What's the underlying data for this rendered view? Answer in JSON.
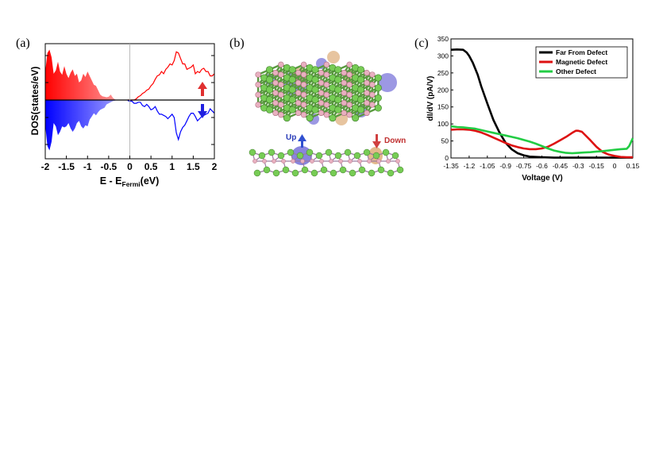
{
  "panels": {
    "a": "(a)",
    "b": "(b)",
    "c": "(c)"
  },
  "structure_labels": {
    "up": "Up",
    "down": "Down"
  },
  "colors": {
    "spin_up": "#ff0000",
    "spin_down": "#0000ff",
    "far": "#000000",
    "magnetic": "#dd1111",
    "other": "#22cc44",
    "carbon_green": "#77cc55",
    "atom_pink": "#e8b0c0",
    "density_orange": "#d08a40",
    "density_blue": "#4a44cc"
  },
  "chart_data": [
    {
      "type": "area",
      "panel": "a",
      "xlabel_main": "E - E",
      "xlabel_sub": "Fermi",
      "xlabel_unit": "(eV)",
      "ylabel": "DOS(states/eV)",
      "xlim": [
        -2,
        2
      ],
      "x_ticks": [
        "-2",
        "-1.5",
        "-1",
        "-0.5",
        "0",
        "0.5",
        "1",
        "1.5",
        "2"
      ],
      "series": [
        {
          "spin": "up",
          "x": [
            -2.0,
            -1.95,
            -1.9,
            -1.85,
            -1.8,
            -1.75,
            -1.7,
            -1.65,
            -1.6,
            -1.55,
            -1.5,
            -1.45,
            -1.4,
            -1.35,
            -1.3,
            -1.25,
            -1.2,
            -1.15,
            -1.1,
            -1.05,
            -1.0,
            -0.95,
            -0.9,
            -0.85,
            -0.8,
            -0.75,
            -0.7,
            -0.65,
            -0.6,
            -0.55,
            -0.5,
            -0.45,
            -0.4,
            -0.35,
            -0.3,
            -0.25,
            -0.2,
            -0.15,
            -0.1,
            -0.05,
            0.0,
            0.05,
            0.1,
            0.15,
            0.2,
            0.25,
            0.3,
            0.35,
            0.4,
            0.45,
            0.5,
            0.55,
            0.6,
            0.65,
            0.7,
            0.75,
            0.8,
            0.85,
            0.9,
            0.95,
            1.0,
            1.05,
            1.1,
            1.15,
            1.2,
            1.25,
            1.3,
            1.35,
            1.4,
            1.45,
            1.5,
            1.55,
            1.6,
            1.65,
            1.7,
            1.75,
            1.8,
            1.85,
            1.9,
            1.95,
            2.0
          ],
          "y": [
            2.6,
            4.3,
            4.6,
            3.9,
            2.4,
            2.7,
            3.5,
            2.6,
            2.3,
            3.1,
            2.4,
            2.0,
            2.5,
            2.8,
            2.2,
            2.4,
            1.6,
            1.8,
            2.4,
            2.1,
            2.6,
            2.2,
            1.8,
            1.4,
            1.3,
            0.9,
            0.5,
            0.35,
            0.3,
            0.25,
            0.3,
            0.5,
            0.2,
            0.05,
            0.0,
            0.0,
            0.0,
            0.0,
            0.0,
            0.0,
            0.0,
            0.0,
            0.0,
            0.1,
            0.3,
            0.4,
            0.6,
            0.7,
            0.9,
            1.0,
            1.3,
            1.5,
            1.9,
            2.2,
            2.3,
            2.6,
            2.4,
            2.8,
            3.0,
            3.3,
            3.2,
            3.6,
            4.4,
            4.3,
            3.8,
            3.3,
            3.3,
            2.8,
            2.9,
            3.0,
            3.2,
            2.4,
            2.6,
            2.5,
            2.8,
            2.9,
            2.6,
            2.6,
            2.2,
            2.2,
            2.4
          ]
        },
        {
          "spin": "down",
          "x": [
            -2.0,
            -1.95,
            -1.9,
            -1.85,
            -1.8,
            -1.75,
            -1.7,
            -1.65,
            -1.6,
            -1.55,
            -1.5,
            -1.45,
            -1.4,
            -1.35,
            -1.3,
            -1.25,
            -1.2,
            -1.15,
            -1.1,
            -1.05,
            -1.0,
            -0.95,
            -0.9,
            -0.85,
            -0.8,
            -0.75,
            -0.7,
            -0.65,
            -0.6,
            -0.55,
            -0.5,
            -0.45,
            -0.4,
            -0.35,
            -0.3,
            -0.25,
            -0.2,
            -0.15,
            -0.1,
            -0.05,
            0.0,
            0.05,
            0.1,
            0.15,
            0.2,
            0.25,
            0.3,
            0.35,
            0.4,
            0.45,
            0.5,
            0.55,
            0.6,
            0.65,
            0.7,
            0.75,
            0.8,
            0.85,
            0.9,
            0.95,
            1.0,
            1.05,
            1.1,
            1.15,
            1.2,
            1.25,
            1.3,
            1.35,
            1.4,
            1.45,
            1.5,
            1.55,
            1.6,
            1.65,
            1.7,
            1.75,
            1.8,
            1.85,
            1.9,
            1.95,
            2.0
          ],
          "y": [
            -2.3,
            -4.2,
            -4.6,
            -3.8,
            -2.1,
            -2.4,
            -3.2,
            -2.9,
            -2.4,
            -2.5,
            -2.4,
            -2.1,
            -2.6,
            -2.9,
            -2.6,
            -2.1,
            -1.9,
            -2.4,
            -2.6,
            -2.3,
            -2.4,
            -1.8,
            -1.5,
            -1.2,
            -1.4,
            -1.1,
            -0.9,
            -0.8,
            -0.7,
            -0.4,
            -0.3,
            -0.2,
            -0.1,
            -0.05,
            0.0,
            0.0,
            0.0,
            0.0,
            0.0,
            -0.05,
            -0.1,
            -0.1,
            -0.3,
            -0.3,
            -0.2,
            -0.2,
            -0.5,
            -0.6,
            -0.4,
            -0.6,
            -0.9,
            -0.8,
            -0.6,
            -1.0,
            -1.3,
            -1.3,
            -1.4,
            -1.5,
            -1.7,
            -1.5,
            -1.3,
            -1.6,
            -3.0,
            -3.6,
            -2.9,
            -2.5,
            -2.3,
            -1.9,
            -1.5,
            -1.2,
            -1.2,
            -1.5,
            -1.9,
            -1.7,
            -1.5,
            -1.4,
            -1.3,
            -1.2,
            -0.8,
            -1.0,
            -1.2
          ]
        }
      ],
      "ylim": [
        -5,
        5
      ]
    },
    {
      "type": "line",
      "panel": "c",
      "xlabel": "Voltage (V)",
      "ylabel": "dI/dV (pA/V)",
      "xlim": [
        -1.35,
        0.15
      ],
      "ylim": [
        0,
        350
      ],
      "x_ticks": [
        "-1.35",
        "-1.2",
        "-1.05",
        "-0.9",
        "-0.75",
        "-0.6",
        "-0.45",
        "-0.3",
        "-0.15",
        "0",
        "0.15"
      ],
      "y_ticks": [
        "0",
        "50",
        "100",
        "150",
        "200",
        "250",
        "300",
        "350"
      ],
      "legend_position": "top-right",
      "series": [
        {
          "name": "Far From Defect",
          "x": [
            -1.35,
            -1.3,
            -1.25,
            -1.22,
            -1.2,
            -1.17,
            -1.13,
            -1.1,
            -1.05,
            -1.0,
            -0.95,
            -0.9,
            -0.85,
            -0.8,
            -0.75,
            -0.7,
            -0.6,
            -0.5,
            -0.45,
            -0.3,
            -0.15,
            0.0,
            0.1,
            0.15
          ],
          "y": [
            318,
            319,
            318,
            310,
            300,
            280,
            245,
            210,
            160,
            112,
            75,
            45,
            26,
            14,
            8,
            4,
            2,
            1,
            1,
            1,
            1,
            1,
            1,
            1
          ]
        },
        {
          "name": "Magnetic Defect",
          "x": [
            -1.35,
            -1.3,
            -1.25,
            -1.2,
            -1.15,
            -1.1,
            -1.05,
            -1.0,
            -0.95,
            -0.9,
            -0.85,
            -0.8,
            -0.75,
            -0.7,
            -0.65,
            -0.6,
            -0.55,
            -0.5,
            -0.45,
            -0.4,
            -0.35,
            -0.32,
            -0.3,
            -0.27,
            -0.25,
            -0.2,
            -0.15,
            -0.1,
            -0.05,
            0.0,
            0.05,
            0.1,
            0.15
          ],
          "y": [
            83,
            84,
            84,
            83,
            80,
            75,
            68,
            60,
            52,
            44,
            37,
            32,
            28,
            26,
            26,
            28,
            33,
            42,
            52,
            62,
            74,
            80,
            80,
            77,
            70,
            52,
            33,
            18,
            10,
            6,
            3,
            2,
            2
          ]
        },
        {
          "name": "Other Defect",
          "x": [
            -1.35,
            -1.3,
            -1.25,
            -1.2,
            -1.15,
            -1.1,
            -1.05,
            -1.0,
            -0.95,
            -0.9,
            -0.85,
            -0.8,
            -0.75,
            -0.7,
            -0.65,
            -0.6,
            -0.55,
            -0.5,
            -0.45,
            -0.4,
            -0.35,
            -0.3,
            -0.25,
            -0.2,
            -0.15,
            -0.1,
            -0.05,
            0.0,
            0.05,
            0.1,
            0.12,
            0.15
          ],
          "y": [
            93,
            91,
            90,
            88,
            86,
            82,
            78,
            74,
            70,
            66,
            62,
            58,
            53,
            48,
            42,
            35,
            28,
            22,
            18,
            15,
            14,
            15,
            16,
            17,
            19,
            20,
            22,
            24,
            26,
            27,
            35,
            58
          ]
        }
      ]
    }
  ]
}
